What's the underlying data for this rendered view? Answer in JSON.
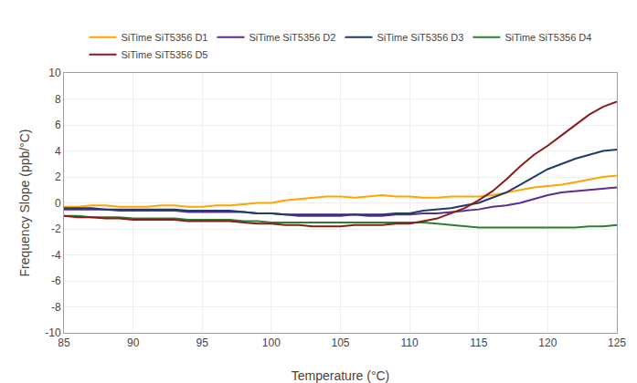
{
  "chart_data": {
    "type": "line",
    "xlabel": "Temperature (°C)",
    "ylabel": "Frequency Slope (ppb/°C)",
    "xlim": [
      85,
      125
    ],
    "ylim": [
      -10,
      10
    ],
    "xticks": [
      85,
      90,
      95,
      100,
      105,
      110,
      115,
      120,
      125
    ],
    "yticks": [
      -10,
      -8,
      -6,
      -4,
      -2,
      0,
      2,
      4,
      6,
      8,
      10
    ],
    "grid": true,
    "legend": "top",
    "x": [
      85,
      86,
      87,
      88,
      89,
      90,
      91,
      92,
      93,
      94,
      95,
      96,
      97,
      98,
      99,
      100,
      101,
      102,
      103,
      104,
      105,
      106,
      107,
      108,
      109,
      110,
      111,
      112,
      113,
      114,
      115,
      116,
      117,
      118,
      119,
      120,
      121,
      122,
      123,
      124,
      125
    ],
    "series": [
      {
        "name": "SiTime SiT5356 D1",
        "color": "#FFA500",
        "values": [
          -0.3,
          -0.3,
          -0.2,
          -0.2,
          -0.3,
          -0.3,
          -0.3,
          -0.2,
          -0.2,
          -0.3,
          -0.3,
          -0.2,
          -0.2,
          -0.1,
          0.0,
          0.0,
          0.2,
          0.3,
          0.4,
          0.5,
          0.5,
          0.4,
          0.5,
          0.6,
          0.5,
          0.5,
          0.4,
          0.4,
          0.5,
          0.5,
          0.5,
          0.6,
          0.8,
          1.0,
          1.2,
          1.3,
          1.4,
          1.6,
          1.8,
          2.0,
          2.1
        ]
      },
      {
        "name": "SiTime SiT5356 D2",
        "color": "#5B2D8E",
        "values": [
          -0.5,
          -0.5,
          -0.5,
          -0.5,
          -0.6,
          -0.6,
          -0.6,
          -0.6,
          -0.6,
          -0.7,
          -0.7,
          -0.7,
          -0.7,
          -0.7,
          -0.8,
          -0.8,
          -0.9,
          -1.0,
          -1.0,
          -1.0,
          -1.0,
          -0.9,
          -1.0,
          -1.0,
          -0.9,
          -0.9,
          -0.8,
          -0.8,
          -0.7,
          -0.6,
          -0.5,
          -0.3,
          -0.2,
          0.0,
          0.3,
          0.6,
          0.8,
          0.9,
          1.0,
          1.1,
          1.2
        ]
      },
      {
        "name": "SiTime SiT5356 D3",
        "color": "#1F3A6E",
        "values": [
          -0.4,
          -0.4,
          -0.4,
          -0.5,
          -0.5,
          -0.5,
          -0.5,
          -0.5,
          -0.5,
          -0.6,
          -0.6,
          -0.6,
          -0.6,
          -0.7,
          -0.8,
          -0.8,
          -0.9,
          -0.9,
          -0.9,
          -0.9,
          -0.9,
          -0.9,
          -0.9,
          -0.9,
          -0.8,
          -0.8,
          -0.6,
          -0.5,
          -0.4,
          -0.2,
          0.0,
          0.4,
          0.8,
          1.4,
          2.0,
          2.6,
          3.0,
          3.4,
          3.7,
          4.0,
          4.1
        ]
      },
      {
        "name": "SiTime SiT5356 D4",
        "color": "#2E7D32",
        "values": [
          -1.0,
          -1.0,
          -1.1,
          -1.1,
          -1.1,
          -1.2,
          -1.2,
          -1.2,
          -1.2,
          -1.3,
          -1.3,
          -1.3,
          -1.3,
          -1.4,
          -1.4,
          -1.5,
          -1.5,
          -1.5,
          -1.5,
          -1.5,
          -1.5,
          -1.5,
          -1.5,
          -1.5,
          -1.5,
          -1.5,
          -1.5,
          -1.6,
          -1.7,
          -1.8,
          -1.9,
          -1.9,
          -1.9,
          -1.9,
          -1.9,
          -1.9,
          -1.9,
          -1.9,
          -1.8,
          -1.8,
          -1.7
        ]
      },
      {
        "name": "SiTime SiT5356 D5",
        "color": "#8B1A1A",
        "values": [
          -1.0,
          -1.1,
          -1.1,
          -1.2,
          -1.2,
          -1.3,
          -1.3,
          -1.3,
          -1.3,
          -1.4,
          -1.4,
          -1.4,
          -1.4,
          -1.5,
          -1.6,
          -1.6,
          -1.7,
          -1.7,
          -1.8,
          -1.8,
          -1.8,
          -1.7,
          -1.7,
          -1.7,
          -1.6,
          -1.6,
          -1.4,
          -1.2,
          -0.8,
          -0.4,
          0.2,
          0.9,
          1.8,
          2.8,
          3.7,
          4.4,
          5.2,
          6.0,
          6.8,
          7.4,
          7.8
        ]
      }
    ]
  }
}
